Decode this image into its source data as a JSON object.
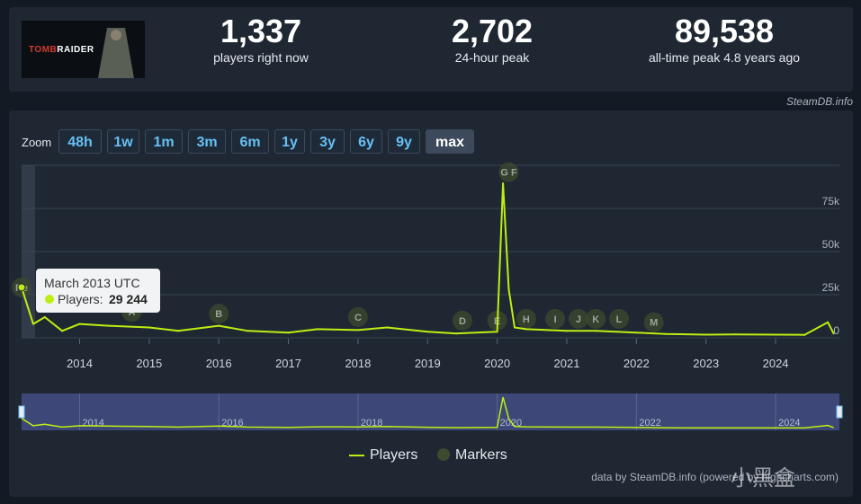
{
  "game": {
    "logo_text_red": "TOMB",
    "logo_text_white": "RAIDER"
  },
  "stats": [
    {
      "value": "1,337",
      "label": "players right now"
    },
    {
      "value": "2,702",
      "label": "24-hour peak"
    },
    {
      "value": "89,538",
      "label": "all-time peak 4.8 years ago"
    }
  ],
  "credit_top": "SteamDB.info",
  "zoom": {
    "label": "Zoom",
    "options": [
      "48h",
      "1w",
      "1m",
      "3m",
      "6m",
      "1y",
      "3y",
      "6y",
      "9y",
      "max"
    ],
    "active": "max"
  },
  "tooltip": {
    "title": "March 2013 UTC",
    "series_label": "Players:",
    "value": "29 244"
  },
  "legend": {
    "players": "Players",
    "markers": "Markers"
  },
  "credit_bottom": "data by SteamDB.info (powered by highcharts.com)",
  "watermark": "小黑盒",
  "colors": {
    "line": "#beee11",
    "marker": "#3e4a2e",
    "grid": "#3a4452"
  },
  "chart_data": {
    "type": "line",
    "xlabel": "",
    "ylabel": "",
    "ylim": [
      0,
      100000
    ],
    "y_ticks": [
      0,
      25000,
      50000,
      75000
    ],
    "y_tick_labels": [
      "0",
      "25k",
      "50k",
      "75k"
    ],
    "x_ticks": [
      "2014",
      "2015",
      "2016",
      "2017",
      "2018",
      "2019",
      "2020",
      "2021",
      "2022",
      "2023",
      "2024"
    ],
    "navigator_ticks": [
      "2014",
      "2016",
      "2018",
      "2020",
      "2022",
      "2024"
    ],
    "grid": true,
    "legend_position": "bottom",
    "series": [
      {
        "name": "Players",
        "x": [
          "2013-03",
          "2013-05",
          "2013-07",
          "2013-10",
          "2014-01",
          "2014-06",
          "2015-01",
          "2015-06",
          "2016-01",
          "2016-06",
          "2017-01",
          "2017-06",
          "2018-01",
          "2018-06",
          "2019-01",
          "2019-06",
          "2020-01",
          "2020-02",
          "2020-03",
          "2020-04",
          "2020-06",
          "2021-01",
          "2021-06",
          "2022-01",
          "2022-06",
          "2023-01",
          "2023-06",
          "2024-01",
          "2024-06",
          "2024-10",
          "2024-11"
        ],
        "values": [
          29244,
          8000,
          12000,
          4000,
          8000,
          7000,
          6000,
          4000,
          7000,
          4000,
          3000,
          5000,
          4500,
          6000,
          3500,
          2500,
          3500,
          89538,
          28000,
          6000,
          5000,
          4000,
          4000,
          3000,
          2200,
          1800,
          2000,
          1800,
          1700,
          9000,
          2500
        ]
      },
      {
        "name": "Markers",
        "x": [
          "2013-03",
          "2014-10",
          "2016-01",
          "2018-01",
          "2019-07",
          "2020-01",
          "2020-03",
          "2020-06",
          "2020-11",
          "2021-03",
          "2021-06",
          "2021-10",
          "2022-04"
        ],
        "labels": [
          "Re",
          "A",
          "B",
          "C",
          "D",
          "E",
          "G F",
          "H",
          "I",
          "J",
          "K",
          "L",
          "M"
        ],
        "values": [
          29244,
          15000,
          14000,
          12000,
          10000,
          10000,
          96000,
          11000,
          11000,
          11000,
          11000,
          11000,
          9000
        ]
      }
    ]
  }
}
